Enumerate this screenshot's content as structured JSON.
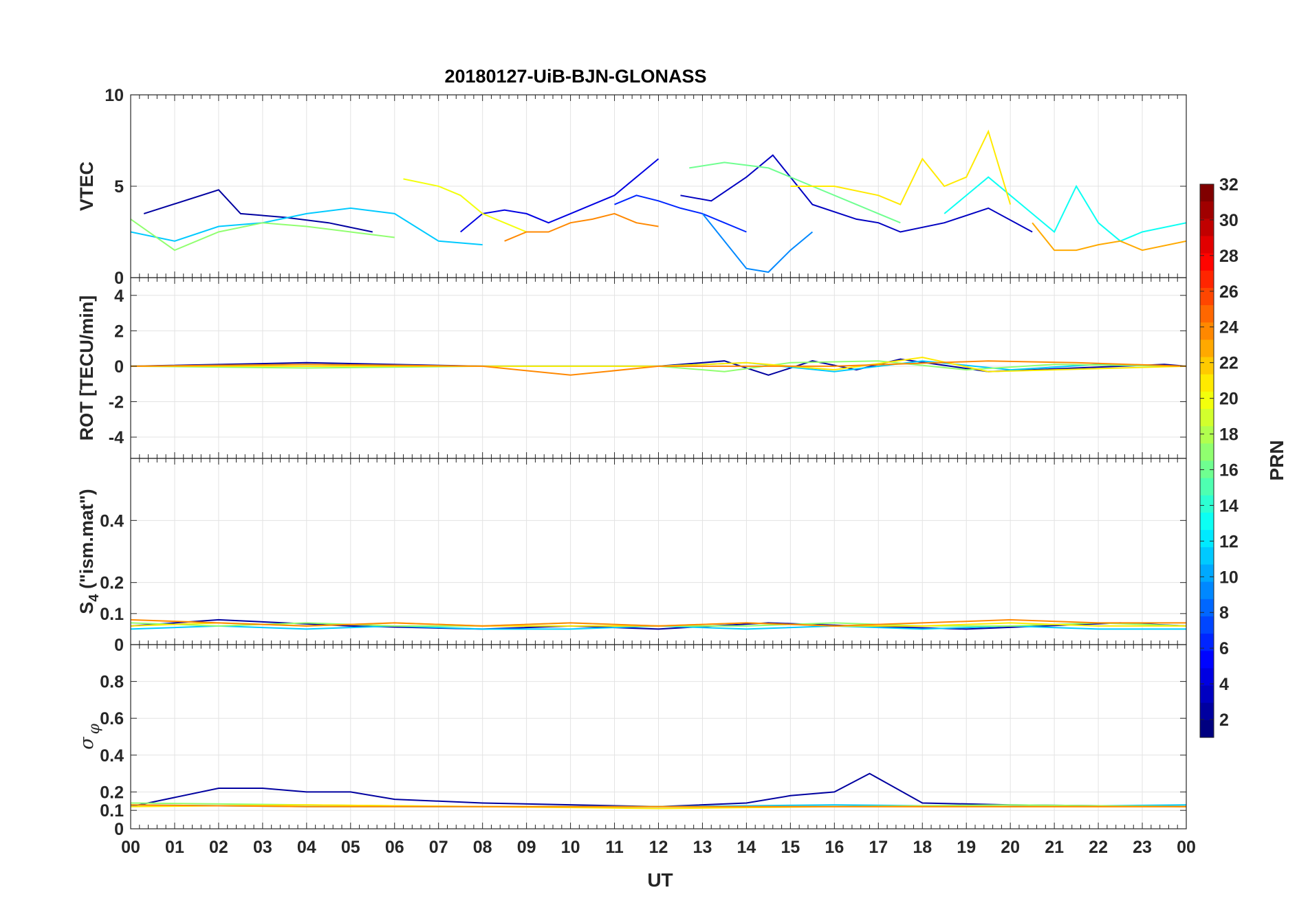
{
  "chart_data": {
    "type": "line",
    "title": "20180127-UiB-BJN-GLONASS",
    "xlabel": "UT",
    "x_ticks": [
      "00",
      "01",
      "02",
      "03",
      "04",
      "05",
      "06",
      "07",
      "08",
      "09",
      "10",
      "11",
      "12",
      "13",
      "14",
      "15",
      "16",
      "17",
      "18",
      "19",
      "20",
      "21",
      "22",
      "23",
      "00"
    ],
    "xlim": [
      0,
      24
    ],
    "grid": true,
    "colorbar": {
      "label": "PRN",
      "range": [
        1,
        32
      ],
      "ticks": [
        "2",
        "4",
        "6",
        "8",
        "10",
        "12",
        "14",
        "16",
        "18",
        "20",
        "22",
        "24",
        "26",
        "28",
        "30",
        "32"
      ],
      "colormap": "jet"
    },
    "panels": [
      {
        "id": "vtec",
        "ylabel": "VTEC",
        "ylim": [
          0,
          10
        ],
        "y_ticks": [
          "0",
          "5",
          "10"
        ],
        "series": [
          {
            "prn": 2,
            "x": [
              0.3,
              2.0,
              2.5,
              3.5,
              4.5,
              5.5
            ],
            "y": [
              3.5,
              4.8,
              3.5,
              3.3,
              3.0,
              2.5
            ]
          },
          {
            "prn": 3,
            "x": [
              12.5,
              13.2,
              14.0,
              14.6,
              15.5,
              16.5,
              17.0,
              17.5,
              18.5,
              19.5,
              20.5
            ],
            "y": [
              4.5,
              4.2,
              5.5,
              6.7,
              4.0,
              3.2,
              3.0,
              2.5,
              3.0,
              3.8,
              2.5
            ]
          },
          {
            "prn": 4,
            "x": [
              7.5,
              8.0,
              8.5,
              9.0,
              9.5,
              10.0,
              10.5,
              11.0,
              11.5,
              12.0
            ],
            "y": [
              2.5,
              3.5,
              3.7,
              3.5,
              3.0,
              3.5,
              4.0,
              4.5,
              5.5,
              6.5
            ]
          },
          {
            "prn": 6,
            "x": [
              11.0,
              11.5,
              12.0,
              12.5,
              13.0,
              13.5,
              14.0
            ],
            "y": [
              4.0,
              4.5,
              4.2,
              3.8,
              3.5,
              3.0,
              2.5
            ]
          },
          {
            "prn": 9,
            "x": [
              13.0,
              13.5,
              14.0,
              14.5,
              15.0,
              15.5
            ],
            "y": [
              3.5,
              2.0,
              0.5,
              0.3,
              1.5,
              2.5
            ]
          },
          {
            "prn": 11,
            "x": [
              0.0,
              1.0,
              2.0,
              3.0,
              4.0,
              5.0,
              6.0,
              7.0,
              8.0
            ],
            "y": [
              2.5,
              2.0,
              2.8,
              3.0,
              3.5,
              3.8,
              3.5,
              2.0,
              1.8
            ]
          },
          {
            "prn": 13,
            "x": [
              18.5,
              19.5,
              20.0,
              20.5,
              21.0,
              21.5,
              22.0,
              22.5,
              23.0,
              24.0
            ],
            "y": [
              3.5,
              5.5,
              4.5,
              3.5,
              2.5,
              5.0,
              3.0,
              2.0,
              2.5,
              3.0
            ]
          },
          {
            "prn": 16,
            "x": [
              12.7,
              13.5,
              14.5,
              15.5,
              16.5,
              17.5
            ],
            "y": [
              6.0,
              6.3,
              6.0,
              5.0,
              4.0,
              3.0
            ]
          },
          {
            "prn": 17,
            "x": [
              0.0,
              1.0,
              2.0,
              3.0,
              4.0,
              5.0,
              6.0
            ],
            "y": [
              3.2,
              1.5,
              2.5,
              3.0,
              2.8,
              2.5,
              2.2
            ]
          },
          {
            "prn": 20,
            "x": [
              6.2,
              7.0,
              7.5,
              8.0,
              8.5,
              9.0
            ],
            "y": [
              5.4,
              5.0,
              4.5,
              3.5,
              3.0,
              2.5
            ]
          },
          {
            "prn": 21,
            "x": [
              15.0,
              16.0,
              17.0,
              17.5,
              18.0,
              18.5,
              19.0,
              19.5,
              20.0
            ],
            "y": [
              5.0,
              5.0,
              4.5,
              4.0,
              6.5,
              5.0,
              5.5,
              8.0,
              4.0
            ]
          },
          {
            "prn": 23,
            "x": [
              20.5,
              21.0,
              21.5,
              22.0,
              22.5,
              23.0,
              24.0
            ],
            "y": [
              3.0,
              1.5,
              1.5,
              1.8,
              2.0,
              1.5,
              2.0
            ]
          },
          {
            "prn": 24,
            "x": [
              8.5,
              9.0,
              9.5,
              10.0,
              10.5,
              11.0,
              11.5,
              12.0
            ],
            "y": [
              2.0,
              2.5,
              2.5,
              3.0,
              3.2,
              3.5,
              3.0,
              2.8
            ]
          }
        ]
      },
      {
        "id": "rot",
        "ylabel": "ROT [TECU/min]",
        "ylim": [
          -5.2,
          5.0
        ],
        "y_ticks": [
          "-4",
          "-2",
          "0",
          "2",
          "4"
        ],
        "series": [
          {
            "prn": 2,
            "x": [
              0.0,
              4.0,
              8.0,
              12.0,
              13.5,
              14.5,
              15.5,
              16.5,
              17.5,
              19.5,
              23.5,
              24.0
            ],
            "y": [
              0.0,
              0.2,
              0.0,
              0.0,
              0.3,
              -0.5,
              0.3,
              -0.2,
              0.4,
              -0.3,
              0.1,
              0.0
            ]
          },
          {
            "prn": 11,
            "x": [
              0.0,
              4.0,
              8.0,
              12.0,
              14.0,
              16.0,
              18.0,
              20.0,
              22.0,
              24.0
            ],
            "y": [
              0.0,
              0.1,
              0.0,
              0.0,
              0.2,
              -0.3,
              0.3,
              -0.2,
              0.1,
              0.0
            ]
          },
          {
            "prn": 17,
            "x": [
              0.0,
              4.0,
              8.0,
              12.0,
              13.5,
              15.0,
              17.0,
              19.0,
              21.0,
              24.0
            ],
            "y": [
              0.0,
              -0.1,
              0.0,
              0.0,
              -0.3,
              0.2,
              0.3,
              -0.2,
              0.1,
              0.0
            ]
          },
          {
            "prn": 21,
            "x": [
              0.0,
              4.0,
              8.0,
              12.0,
              14.0,
              16.0,
              18.0,
              19.5,
              24.0
            ],
            "y": [
              0.0,
              0.0,
              0.0,
              0.0,
              0.2,
              -0.2,
              0.5,
              -0.3,
              0.0
            ]
          },
          {
            "prn": 24,
            "x": [
              0.0,
              4.0,
              8.0,
              10.0,
              12.0,
              16.0,
              19.5,
              21.5,
              24.0
            ],
            "y": [
              0.0,
              0.1,
              0.0,
              -0.5,
              0.0,
              0.0,
              0.3,
              0.2,
              0.0
            ]
          }
        ]
      },
      {
        "id": "s4",
        "ylabel": "S4 (\"ism.mat\")",
        "ylim": [
          0,
          0.6
        ],
        "y_ticks": [
          "0",
          "0.1",
          "0.2",
          "0.4"
        ],
        "series": [
          {
            "prn": 2,
            "x": [
              0.0,
              2.0,
              3.5,
              5.0,
              8.0,
              10.0,
              12.0,
              14.5,
              16.5,
              19.0,
              22.5,
              24.0
            ],
            "y": [
              0.06,
              0.08,
              0.07,
              0.06,
              0.05,
              0.06,
              0.05,
              0.07,
              0.06,
              0.05,
              0.07,
              0.06
            ]
          },
          {
            "prn": 11,
            "x": [
              0.0,
              2.0,
              4.0,
              6.0,
              8.0,
              10.0,
              12.0,
              14.0,
              16.0,
              18.0,
              20.0,
              22.0,
              24.0
            ],
            "y": [
              0.05,
              0.06,
              0.05,
              0.06,
              0.05,
              0.05,
              0.06,
              0.05,
              0.06,
              0.05,
              0.06,
              0.05,
              0.05
            ]
          },
          {
            "prn": 17,
            "x": [
              0.0,
              2.0,
              4.0,
              6.0,
              8.0,
              10.0,
              12.0,
              14.0,
              16.0,
              18.0,
              20.0,
              22.0,
              24.0
            ],
            "y": [
              0.07,
              0.06,
              0.07,
              0.06,
              0.06,
              0.07,
              0.06,
              0.06,
              0.07,
              0.06,
              0.06,
              0.07,
              0.06
            ]
          },
          {
            "prn": 21,
            "x": [
              0.0,
              2.0,
              4.0,
              6.0,
              8.0,
              10.0,
              12.0,
              14.0,
              16.0,
              18.0,
              20.0,
              22.0,
              24.0
            ],
            "y": [
              0.06,
              0.07,
              0.06,
              0.07,
              0.06,
              0.06,
              0.06,
              0.07,
              0.06,
              0.06,
              0.07,
              0.06,
              0.06
            ]
          },
          {
            "prn": 24,
            "x": [
              0.0,
              2.0,
              4.0,
              6.0,
              8.0,
              10.0,
              12.0,
              14.0,
              16.0,
              18.0,
              20.0,
              22.0,
              24.0
            ],
            "y": [
              0.08,
              0.07,
              0.06,
              0.07,
              0.06,
              0.07,
              0.06,
              0.07,
              0.06,
              0.07,
              0.08,
              0.07,
              0.07
            ]
          }
        ]
      },
      {
        "id": "sigma_phi",
        "ylabel": "σ φ",
        "ylim": [
          0,
          1.0
        ],
        "y_ticks": [
          "0",
          "0.1",
          "0.2",
          "0.4",
          "0.6",
          "0.8"
        ],
        "series": [
          {
            "prn": 2,
            "x": [
              0.0,
              2.0,
              3.0,
              4.0,
              5.0,
              6.0,
              8.0,
              12.0,
              14.0,
              15.0,
              16.0,
              16.8,
              18.0,
              20.0,
              24.0
            ],
            "y": [
              0.12,
              0.22,
              0.22,
              0.2,
              0.2,
              0.16,
              0.14,
              0.12,
              0.14,
              0.18,
              0.2,
              0.3,
              0.14,
              0.13,
              0.12
            ]
          },
          {
            "prn": 11,
            "x": [
              0.0,
              4.0,
              8.0,
              12.0,
              16.0,
              20.0,
              24.0
            ],
            "y": [
              0.13,
              0.12,
              0.12,
              0.12,
              0.13,
              0.12,
              0.13
            ]
          },
          {
            "prn": 17,
            "x": [
              0.0,
              4.0,
              8.0,
              12.0,
              16.0,
              20.0,
              24.0
            ],
            "y": [
              0.14,
              0.13,
              0.12,
              0.12,
              0.12,
              0.13,
              0.12
            ]
          },
          {
            "prn": 21,
            "x": [
              0.0,
              4.0,
              8.0,
              12.0,
              16.0,
              20.0,
              24.0
            ],
            "y": [
              0.12,
              0.13,
              0.12,
              0.11,
              0.12,
              0.12,
              0.12
            ]
          },
          {
            "prn": 24,
            "x": [
              0.0,
              4.0,
              8.0,
              12.0,
              16.0,
              20.0,
              24.0
            ],
            "y": [
              0.13,
              0.12,
              0.12,
              0.12,
              0.12,
              0.12,
              0.12
            ]
          }
        ]
      }
    ]
  }
}
